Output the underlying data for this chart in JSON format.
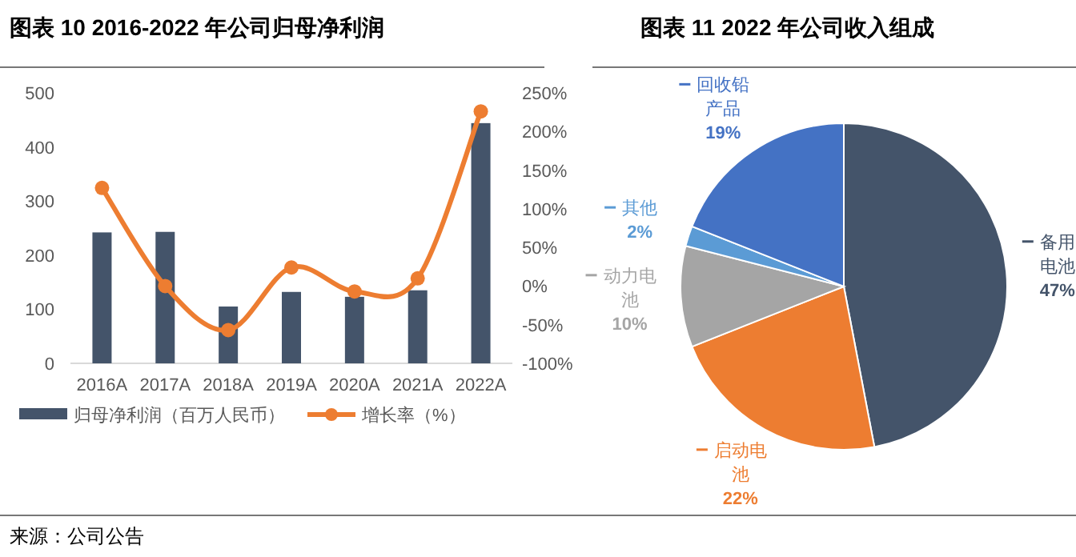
{
  "chart_data": [
    {
      "type": "bar",
      "title": "图表 10 2016-2022 年公司归母净利润",
      "categories": [
        "2016A",
        "2017A",
        "2018A",
        "2019A",
        "2020A",
        "2021A",
        "2022A"
      ],
      "series": [
        {
          "name": "归母净利润（百万人民币）",
          "type": "bar",
          "color": "#44546a",
          "values": [
            242,
            243,
            105,
            132,
            123,
            135,
            444
          ]
        },
        {
          "name": "增长率（%）",
          "type": "line",
          "axis": "y2",
          "color": "#ed7d31",
          "marker": "circle",
          "values": [
            127,
            0,
            -57,
            24,
            -7,
            10,
            226
          ]
        }
      ],
      "ylim": [
        0,
        500
      ],
      "yticks": [
        0,
        100,
        200,
        300,
        400,
        500
      ],
      "y2lim": [
        -100,
        250
      ],
      "y2ticks": [
        {
          "value": -100,
          "label": "-100%"
        },
        {
          "value": -50,
          "label": "-50%"
        },
        {
          "value": 0,
          "label": "0%"
        },
        {
          "value": 50,
          "label": "50%"
        },
        {
          "value": 100,
          "label": "100%"
        },
        {
          "value": 150,
          "label": "150%"
        },
        {
          "value": 200,
          "label": "200%"
        },
        {
          "value": 250,
          "label": "250%"
        }
      ],
      "legend": "bottom",
      "annotations": [
        "来源：公司公告"
      ]
    },
    {
      "type": "pie",
      "title": "图表 11 2022 年公司收入组成",
      "categories": [
        "备用电池",
        "启动电池",
        "动力电池",
        "其他",
        "回收铅产品"
      ],
      "values": [
        47,
        22,
        10,
        2,
        19
      ],
      "colors": [
        "#44546a",
        "#ed7d31",
        "#a5a5a5",
        "#5b9bd5",
        "#4472c4"
      ],
      "value_labels": [
        "47%",
        "22%",
        "10%",
        "2%",
        "19%"
      ],
      "legend": "left"
    }
  ]
}
